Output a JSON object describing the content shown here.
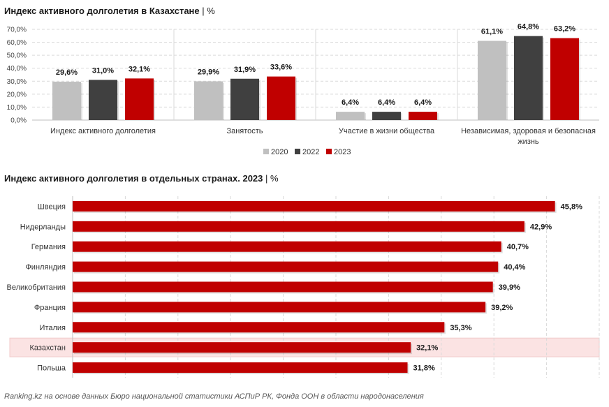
{
  "chart_data": [
    {
      "type": "bar",
      "title": "Индекс активного долголетия в Казахстане",
      "unit": "%",
      "categories": [
        [
          "Индекс активного долголетия"
        ],
        [
          "Занятость"
        ],
        [
          "Участие в жизни общества"
        ],
        [
          "Независимая, здоровая и безопасная",
          "жизнь"
        ]
      ],
      "series": [
        {
          "name": "2020",
          "color": "#c0c0c0",
          "values": [
            29.6,
            29.9,
            6.4,
            61.1
          ],
          "labels": [
            "29,6%",
            "29,9%",
            "6,4%",
            "61,1%"
          ]
        },
        {
          "name": "2022",
          "color": "#404040",
          "values": [
            31.0,
            31.9,
            6.4,
            64.8
          ],
          "labels": [
            "31,0%",
            "31,9%",
            "6,4%",
            "64,8%"
          ]
        },
        {
          "name": "2023",
          "color": "#c00000",
          "values": [
            32.1,
            33.6,
            6.4,
            63.2
          ],
          "labels": [
            "32,1%",
            "33,6%",
            "6,4%",
            "63,2%"
          ]
        }
      ],
      "ylim": [
        0,
        70
      ],
      "yticks": [
        "0,0%",
        "10,0%",
        "20,0%",
        "30,0%",
        "40,0%",
        "50,0%",
        "60,0%",
        "70,0%"
      ],
      "legend": "bottom",
      "grid": true
    },
    {
      "type": "bar",
      "orientation": "horizontal",
      "title": "Индекс активного долголетия в отдельных странах. 2023",
      "unit": "%",
      "color": "#c00000",
      "highlight_color": "#fbe3e3",
      "categories": [
        "Швеция",
        "Нидерланды",
        "Германия",
        "Финляндия",
        "Великобритания",
        "Франция",
        "Италия",
        "Казахстан",
        "Польша"
      ],
      "values": [
        45.8,
        42.9,
        40.7,
        40.4,
        39.9,
        39.2,
        35.3,
        32.1,
        31.8
      ],
      "labels": [
        "45,8%",
        "42,9%",
        "40,7%",
        "40,4%",
        "39,9%",
        "39,2%",
        "35,3%",
        "32,1%",
        "31,8%"
      ],
      "highlight": "Казахстан",
      "xlim": [
        0,
        50
      ],
      "grid": true
    }
  ],
  "source": "Ranking.kz на основе данных Бюро национальной статистики АСПиР РК, Фонда ООН в области народонаселения"
}
